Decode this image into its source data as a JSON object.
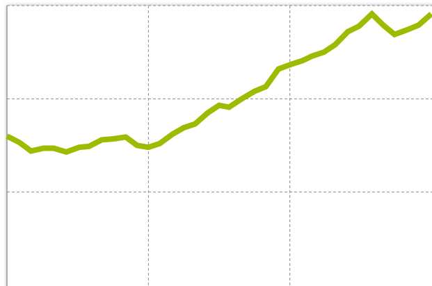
{
  "chart_data": {
    "type": "line",
    "x": [
      0.0,
      0.09,
      0.17,
      0.26,
      0.33,
      0.42,
      0.51,
      0.58,
      0.67,
      0.75,
      0.84,
      0.92,
      1.0,
      1.08,
      1.17,
      1.25,
      1.33,
      1.42,
      1.5,
      1.57,
      1.66,
      1.75,
      1.83,
      1.92,
      2.01,
      2.09,
      2.16,
      2.24,
      2.32,
      2.41,
      2.49,
      2.58,
      2.66,
      2.74,
      2.83,
      2.91,
      3.0
    ],
    "series": [
      {
        "color": "#9dbb00",
        "values": [
          1.6,
          1.53,
          1.44,
          1.47,
          1.47,
          1.43,
          1.48,
          1.49,
          1.56,
          1.57,
          1.59,
          1.5,
          1.48,
          1.52,
          1.62,
          1.69,
          1.73,
          1.85,
          1.93,
          1.91,
          2.0,
          2.08,
          2.13,
          2.32,
          2.37,
          2.41,
          2.46,
          2.5,
          2.58,
          2.72,
          2.78,
          2.91,
          2.79,
          2.69,
          2.74,
          2.79,
          2.91
        ]
      }
    ],
    "xlim": [
      0,
      3
    ],
    "xticks": [
      1,
      2
    ],
    "ylim": [
      0,
      3
    ],
    "yticks": [
      1,
      2,
      3
    ],
    "grid": true
  }
}
